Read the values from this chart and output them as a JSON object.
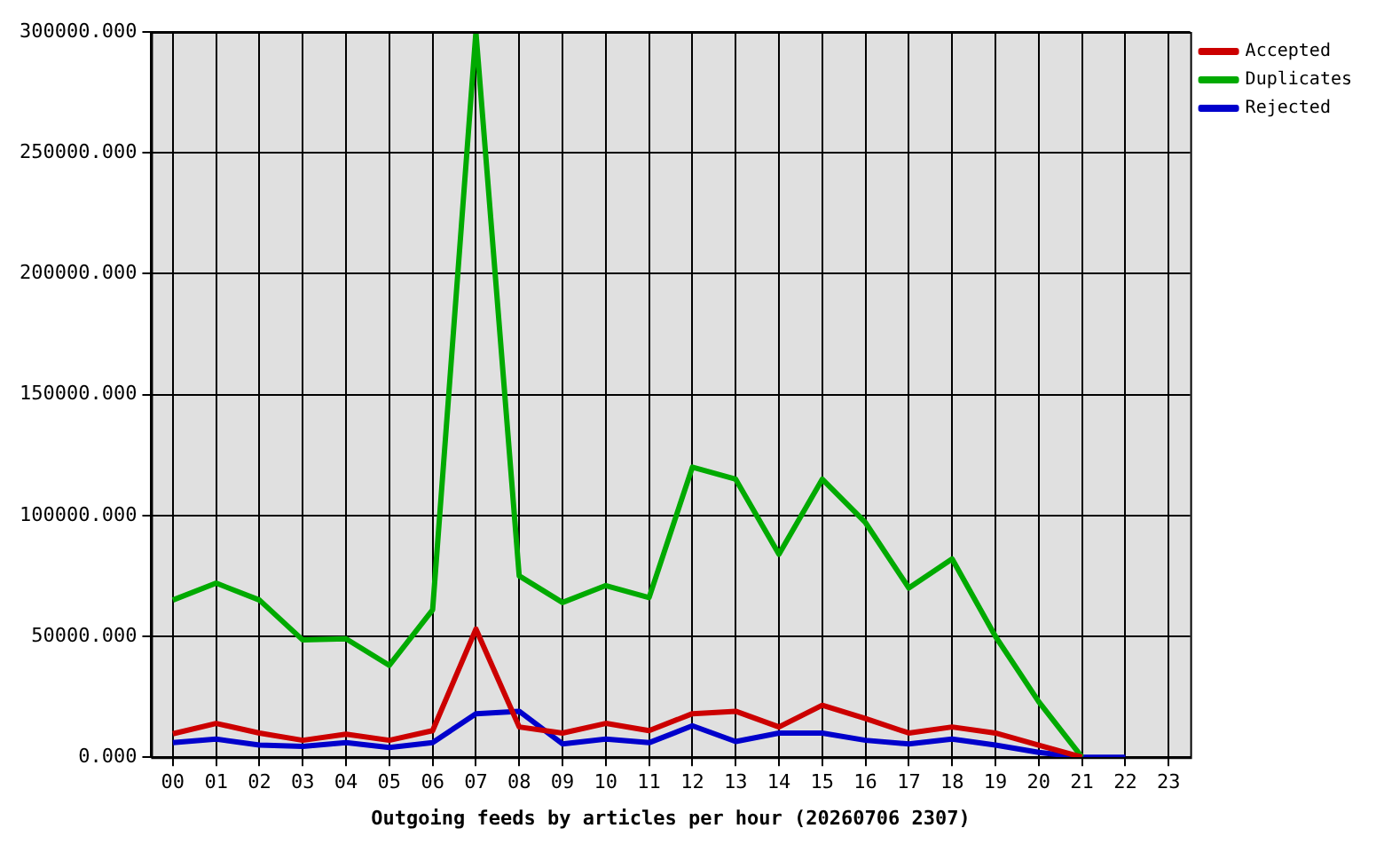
{
  "chart_data": {
    "type": "line",
    "xlabel": "Outgoing feeds by articles per hour (20260706 2307)",
    "categories": [
      "00",
      "01",
      "02",
      "03",
      "04",
      "05",
      "06",
      "07",
      "08",
      "09",
      "10",
      "11",
      "12",
      "13",
      "14",
      "15",
      "16",
      "17",
      "18",
      "19",
      "20",
      "21",
      "22",
      "23"
    ],
    "series": [
      {
        "name": "Accepted",
        "color": "#cc0000",
        "values": [
          9700,
          14000,
          10000,
          7000,
          9500,
          7000,
          11000,
          53000,
          12500,
          10000,
          14000,
          11000,
          18000,
          19000,
          12500,
          21500,
          16000,
          10000,
          12500,
          10000,
          5000,
          0,
          null,
          null
        ]
      },
      {
        "name": "Duplicates",
        "color": "#00aa00",
        "values": [
          65000,
          72000,
          65000,
          48500,
          49000,
          38000,
          61000,
          300000,
          75000,
          64000,
          71000,
          66000,
          120000,
          115000,
          84000,
          115000,
          97000,
          70000,
          82000,
          50000,
          23000,
          0,
          null,
          null
        ]
      },
      {
        "name": "Rejected",
        "color": "#0000cc",
        "values": [
          6000,
          7500,
          5000,
          4500,
          6000,
          4000,
          6000,
          18000,
          19000,
          5500,
          7500,
          6000,
          13000,
          6500,
          10000,
          10000,
          7000,
          5500,
          7500,
          5000,
          2000,
          0,
          0,
          null
        ]
      }
    ],
    "ylim": [
      0,
      300000
    ],
    "yticks": [
      {
        "value": 0,
        "label": "0.000"
      },
      {
        "value": 50000,
        "label": "50000.000"
      },
      {
        "value": 100000,
        "label": "100000.000"
      },
      {
        "value": 150000,
        "label": "150000.000"
      },
      {
        "value": 200000,
        "label": "200000.000"
      },
      {
        "value": 250000,
        "label": "250000.000"
      },
      {
        "value": 300000,
        "label": "300000.000"
      }
    ],
    "grid": true,
    "legend": "top right",
    "line_style": "solid"
  }
}
